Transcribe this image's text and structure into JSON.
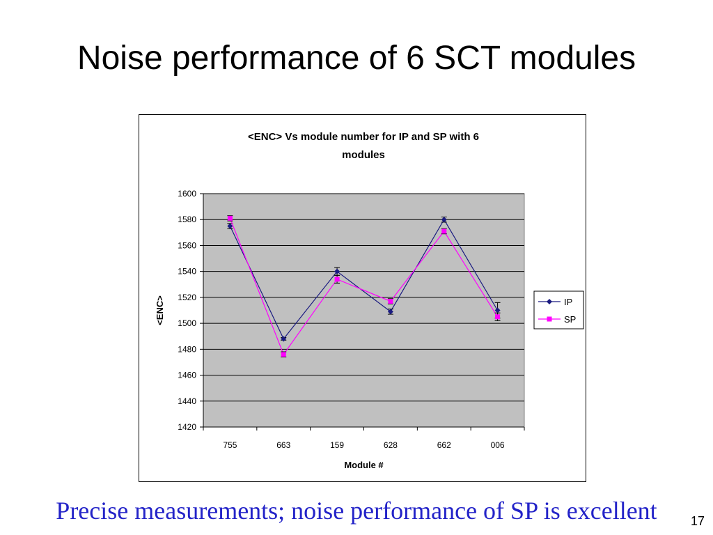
{
  "slide": {
    "title": "Noise performance of 6 SCT modules",
    "caption": "Precise measurements; noise performance of SP is excellent",
    "page_number": "17"
  },
  "colors": {
    "ip": "#1a1a80",
    "sp": "#ff00ff",
    "plot_bg": "#c0c0c0",
    "caption": "#2323c8"
  },
  "chart_data": {
    "type": "line",
    "title": "<ENC> Vs module number for IP and SP with 6 modules",
    "title_lines": [
      "<ENC> Vs module number for IP and SP with 6",
      "modules"
    ],
    "xlabel": "Module #",
    "ylabel": "<ENC>",
    "categories": [
      "755",
      "663",
      "159",
      "628",
      "662",
      "006"
    ],
    "ylim": [
      1420,
      1600
    ],
    "yticks": [
      1420,
      1440,
      1460,
      1480,
      1500,
      1520,
      1540,
      1560,
      1580,
      1600
    ],
    "grid": true,
    "legend_position": "right",
    "series": [
      {
        "name": "IP",
        "marker": "diamond",
        "color": "#1a1a80",
        "values": [
          1575,
          1488,
          1540,
          1509,
          1580,
          1510
        ],
        "errors": [
          2,
          1,
          3,
          2,
          2,
          6
        ]
      },
      {
        "name": "SP",
        "marker": "square",
        "color": "#ff00ff",
        "values": [
          1581,
          1476,
          1534,
          1517,
          1571,
          1505
        ],
        "errors": [
          2,
          2,
          3,
          2,
          2,
          3
        ]
      }
    ]
  }
}
